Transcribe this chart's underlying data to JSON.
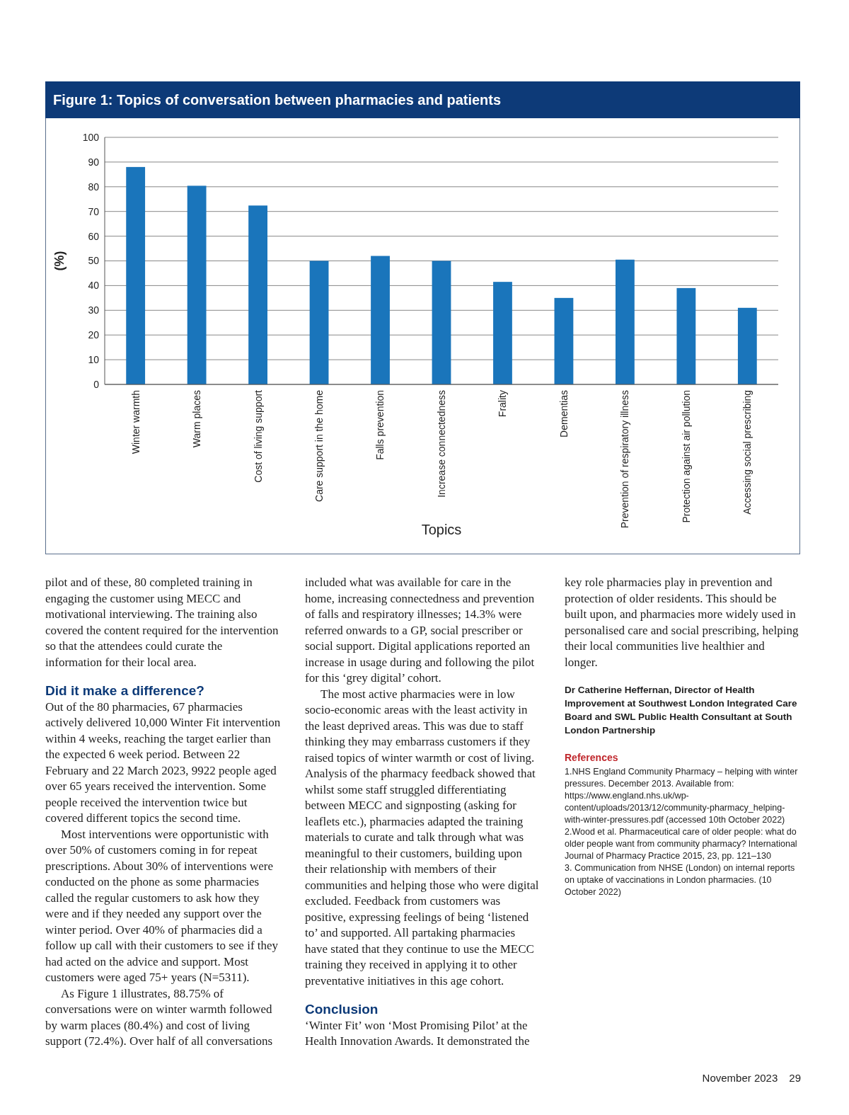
{
  "chart_data": {
    "type": "bar",
    "title": "Figure 1: Topics of conversation between pharmacies and patients",
    "xlabel": "Topics",
    "ylabel": "(%)",
    "categories": [
      "Winter warmth",
      "Warm places",
      "Cost of living support",
      "Care support in the home",
      "Falls prevention",
      "Increase connectedness",
      "Frality",
      "Dementias",
      "Prevention of respiratory illness",
      "Protection against air pollution",
      "Accessing social prescribing"
    ],
    "values": [
      88,
      80.4,
      72.4,
      50,
      52,
      50,
      41.5,
      35,
      50.5,
      39,
      31
    ],
    "color": "#1a75bb",
    "ylim": [
      0,
      100
    ],
    "yticks": [
      0,
      10,
      20,
      30,
      40,
      50,
      60,
      70,
      80,
      90,
      100
    ],
    "grid": "y",
    "annotations": [
      "pilot and of these, 80 completed training in engaging the customer using MECC and motivational interviewing. The training also covered the content required for the intervention so that the attendees could curate the information for their local area.",
      "Did it make a difference?",
      "Out of the 80 pharmacies, 67 pharmacies actively delivered 10,000 Winter Fit intervention within 4 weeks, reaching the target earlier than the expected 6 week period.  Between 22 February and 22 March 2023, 9922 people aged over 65 years received the intervention. Some people received the intervention twice but covered different topics the second time.",
      "Most interventions were opportunistic with over 50% of customers coming in for repeat prescriptions. About 30% of interventions were conducted on the phone as some pharmacies called the regular customers to ask how they were and if they needed any support over the winter period. Over 40% of pharmacies did a follow up call with their customers to see if they had acted on the advice and support. Most customers were aged 75+ years (N=5311).",
      "As Figure 1 illustrates, 88.75% of conversations were on winter warmth followed by warm places (80.4%) and cost of living support (72.4%).  Over half of all conversations included what was available for care in the home, increasing connectedness and prevention of falls and respiratory illnesses; 14.3% were referred onwards to a GP, social prescriber or social support. Digital applications reported an increase in usage during and following the pilot for this ‘grey digital’ cohort.",
      "The most active pharmacies were in low socio-economic areas with the least activity in the least deprived areas.  This was due to staff thinking they may embarrass customers if they raised topics of winter warmth or cost of living.  Analysis of the pharmacy feedback showed that whilst some staff struggled differentiating between MECC and signposting (asking for leaflets etc.), pharmacies adapted the training materials to curate and talk through what was meaningful to their customers, building upon their relationship with members of their communities and helping those who were digital excluded.  Feedback from customers was positive, expressing feelings of being ‘listened to’ and supported.  All partaking pharmacies have stated that they continue to use the MECC training they received in applying it to other preventative initiatives in this age cohort.",
      "Conclusion",
      "‘Winter Fit’ won ‘Most Promising Pilot’ at the Health Innovation Awards.  It demonstrated the key role pharmacies play in prevention and protection of older residents.  This should be built upon, and pharmacies more widely used in personalised care and social prescribing, helping their local communities live healthier and longer.",
      "Dr Catherine Heffernan, Director of Health Improvement at Southwest London Integrated Care Board and SWL Public Health Consultant at South London Partnership",
      "References",
      "1.NHS England Community Pharmacy – helping with winter pressures. December 2013. Available from: https://www.england.nhs.uk/wp-content/uploads/2013/12/community-pharmacy_helping-with-winter-pressures.pdf (accessed 10th October 2022)",
      "2.Wood et al. Pharmaceutical care of older people: what do older people want from community pharmacy? International Journal of Pharmacy Practice 2015, 23, pp. 121–130",
      "3. Communication from NHSE (London) on internal reports on uptake of vaccinations in London pharmacies. (10 October 2022)",
      "November 2023",
      "29"
    ]
  }
}
